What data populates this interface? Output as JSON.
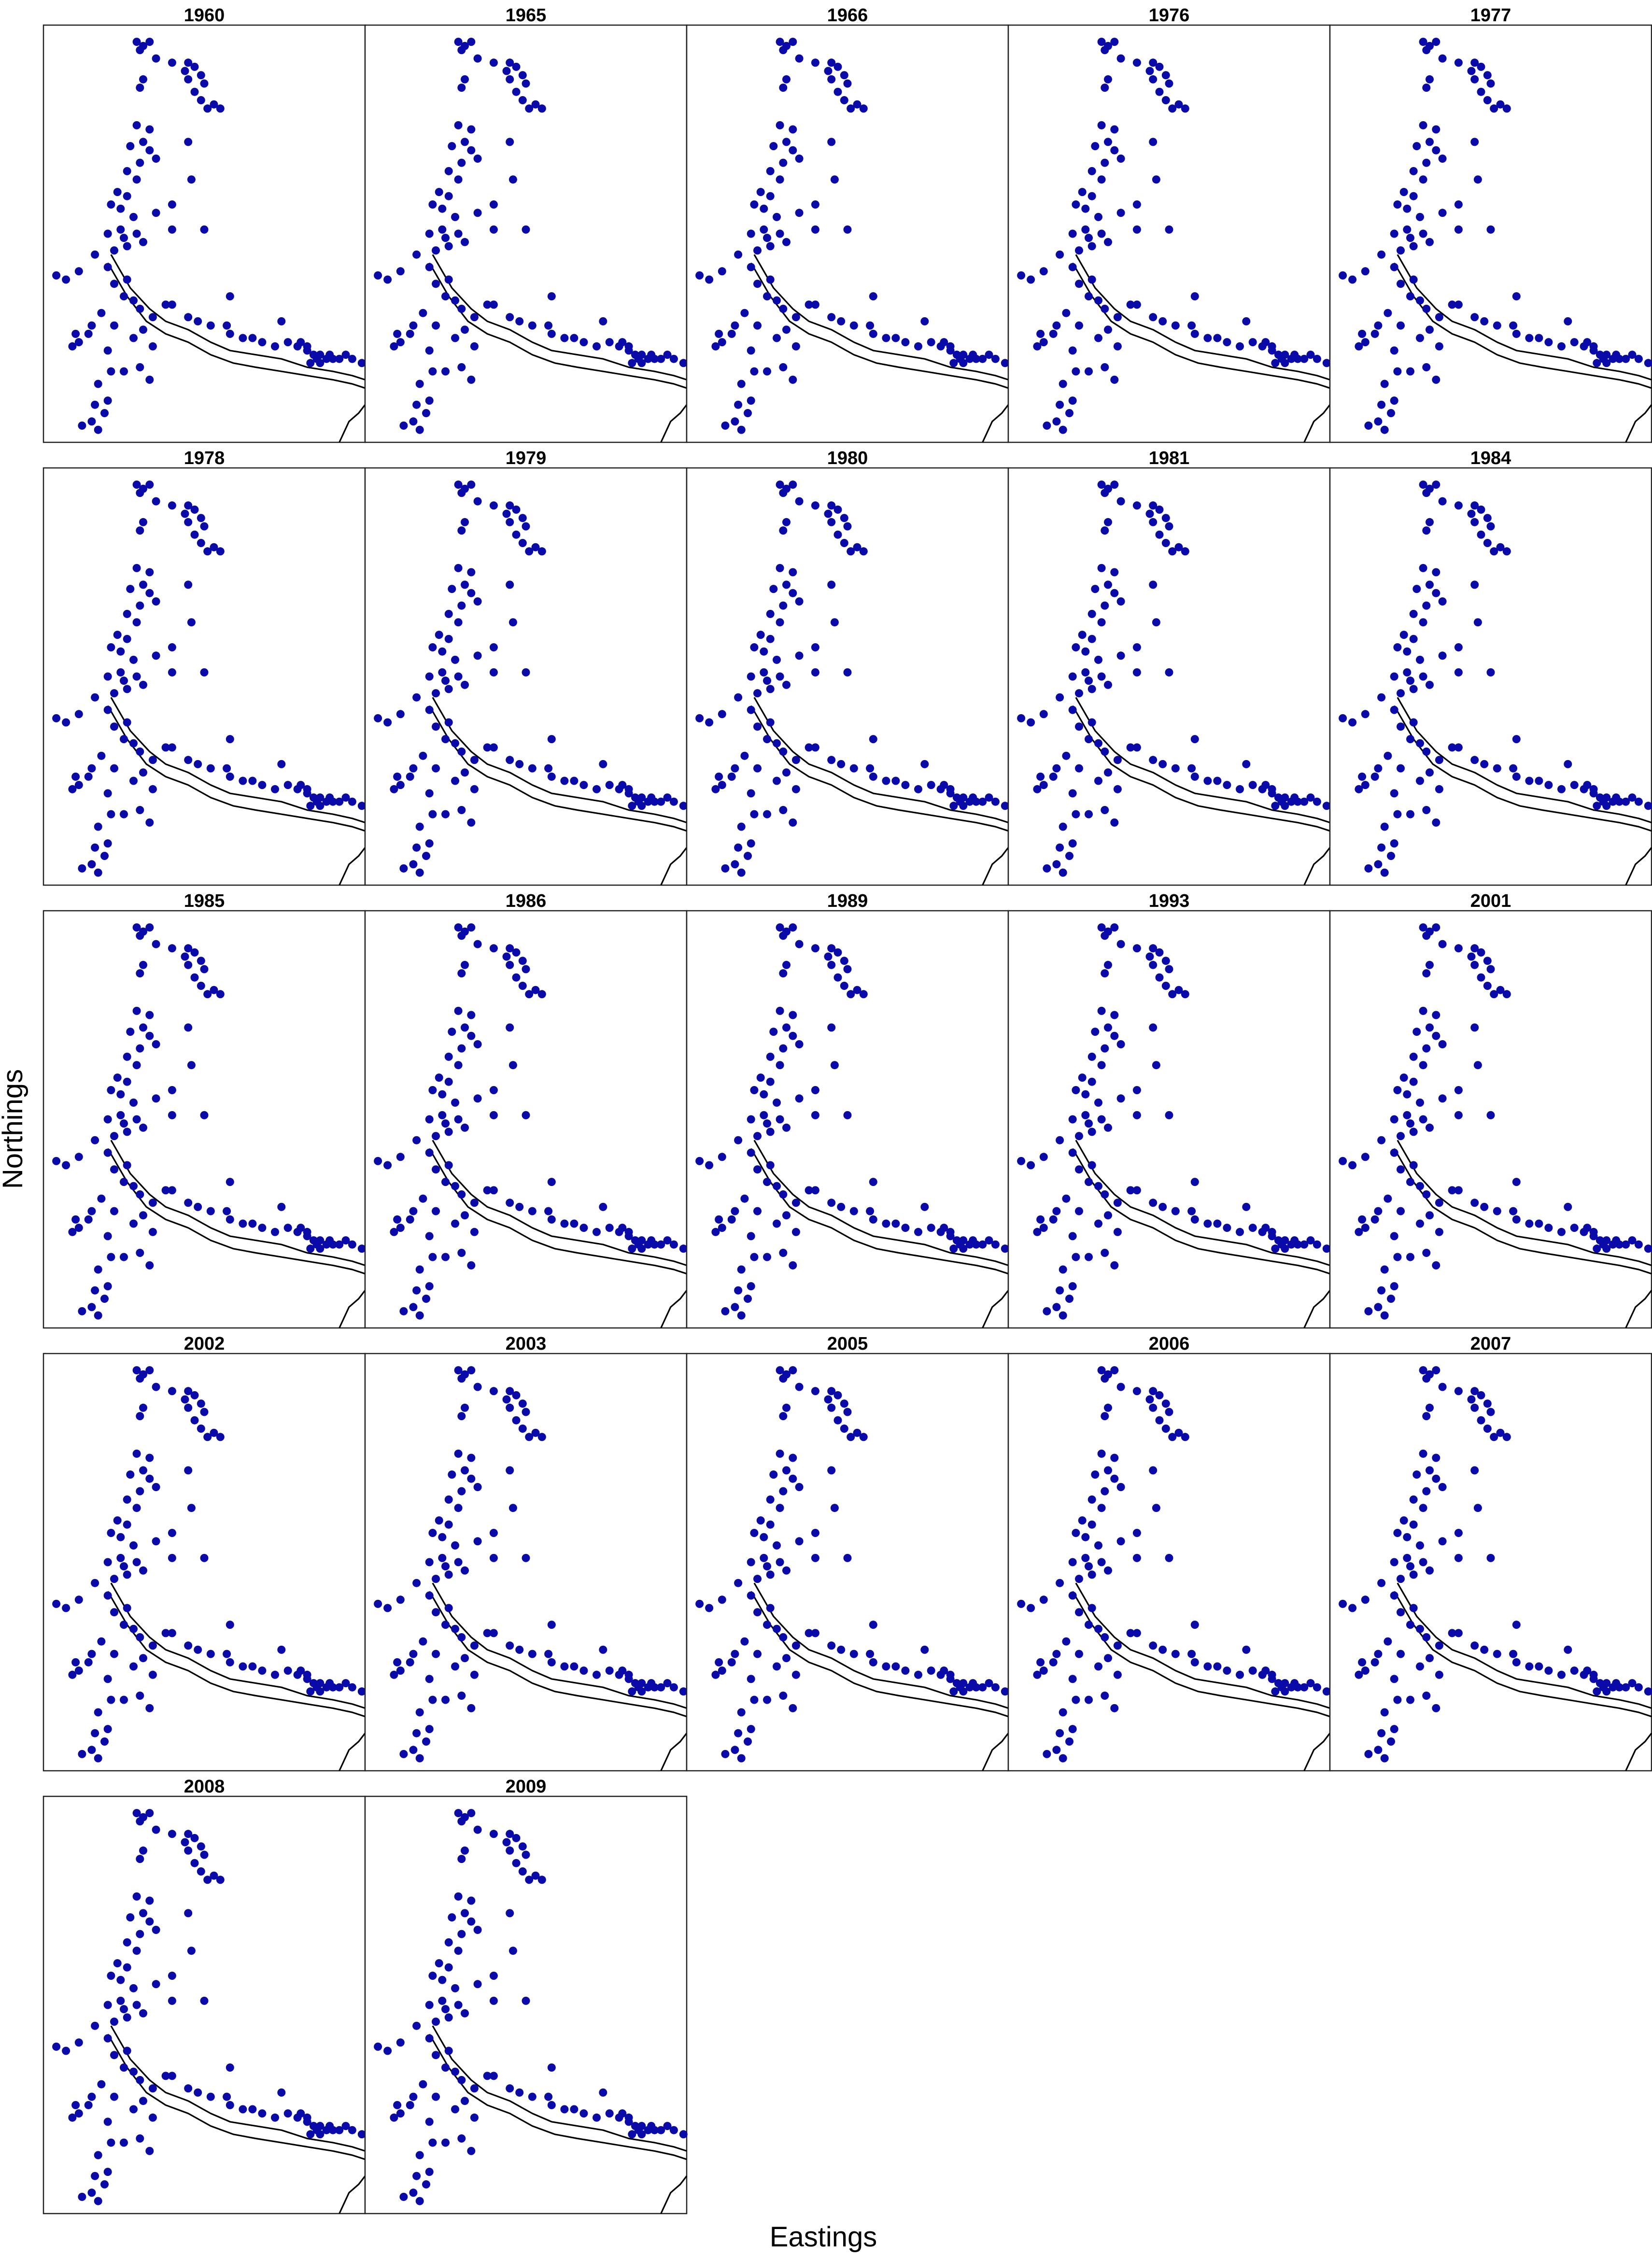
{
  "chart_data": {
    "type": "scatter",
    "layout": "small-multiples",
    "xlabel": "Eastings",
    "ylabel": "Northings",
    "panels": [
      "1960",
      "1965",
      "1966",
      "1976",
      "1977",
      "1978",
      "1979",
      "1980",
      "1981",
      "1984",
      "1985",
      "1986",
      "1989",
      "1993",
      "2001",
      "2002",
      "2003",
      "2005",
      "2006",
      "2007",
      "2008",
      "2009"
    ],
    "grid": false,
    "point_color": "#0a0aa8",
    "points": [
      [
        0.29,
        0.04
      ],
      [
        0.33,
        0.04
      ],
      [
        0.31,
        0.05
      ],
      [
        0.3,
        0.06
      ],
      [
        0.35,
        0.08
      ],
      [
        0.4,
        0.09
      ],
      [
        0.45,
        0.09
      ],
      [
        0.44,
        0.11
      ],
      [
        0.47,
        0.1
      ],
      [
        0.49,
        0.12
      ],
      [
        0.45,
        0.13
      ],
      [
        0.5,
        0.14
      ],
      [
        0.47,
        0.16
      ],
      [
        0.49,
        0.18
      ],
      [
        0.53,
        0.19
      ],
      [
        0.55,
        0.2
      ],
      [
        0.51,
        0.2
      ],
      [
        0.31,
        0.13
      ],
      [
        0.3,
        0.15
      ],
      [
        0.29,
        0.24
      ],
      [
        0.33,
        0.25
      ],
      [
        0.31,
        0.28
      ],
      [
        0.27,
        0.29
      ],
      [
        0.33,
        0.3
      ],
      [
        0.35,
        0.32
      ],
      [
        0.3,
        0.33
      ],
      [
        0.26,
        0.35
      ],
      [
        0.29,
        0.37
      ],
      [
        0.23,
        0.4
      ],
      [
        0.26,
        0.41
      ],
      [
        0.21,
        0.43
      ],
      [
        0.24,
        0.44
      ],
      [
        0.28,
        0.46
      ],
      [
        0.24,
        0.49
      ],
      [
        0.2,
        0.5
      ],
      [
        0.25,
        0.51
      ],
      [
        0.22,
        0.54
      ],
      [
        0.26,
        0.53
      ],
      [
        0.45,
        0.28
      ],
      [
        0.46,
        0.37
      ],
      [
        0.4,
        0.43
      ],
      [
        0.35,
        0.45
      ],
      [
        0.4,
        0.49
      ],
      [
        0.5,
        0.49
      ],
      [
        0.31,
        0.52
      ],
      [
        0.29,
        0.5
      ],
      [
        0.04,
        0.6
      ],
      [
        0.07,
        0.61
      ],
      [
        0.11,
        0.59
      ],
      [
        0.16,
        0.55
      ],
      [
        0.2,
        0.58
      ],
      [
        0.22,
        0.62
      ],
      [
        0.26,
        0.61
      ],
      [
        0.25,
        0.65
      ],
      [
        0.28,
        0.66
      ],
      [
        0.3,
        0.68
      ],
      [
        0.34,
        0.7
      ],
      [
        0.38,
        0.67
      ],
      [
        0.4,
        0.67
      ],
      [
        0.45,
        0.7
      ],
      [
        0.48,
        0.71
      ],
      [
        0.52,
        0.72
      ],
      [
        0.57,
        0.72
      ],
      [
        0.58,
        0.74
      ],
      [
        0.62,
        0.75
      ],
      [
        0.65,
        0.75
      ],
      [
        0.68,
        0.76
      ],
      [
        0.72,
        0.77
      ],
      [
        0.76,
        0.76
      ],
      [
        0.79,
        0.77
      ],
      [
        0.82,
        0.78
      ],
      [
        0.84,
        0.79
      ],
      [
        0.86,
        0.79
      ],
      [
        0.89,
        0.79
      ],
      [
        0.92,
        0.8
      ],
      [
        0.94,
        0.79
      ],
      [
        0.96,
        0.8
      ],
      [
        0.99,
        0.81
      ],
      [
        0.58,
        0.65
      ],
      [
        0.74,
        0.71
      ],
      [
        0.82,
        0.77
      ],
      [
        0.86,
        0.81
      ],
      [
        0.8,
        0.76
      ],
      [
        0.85,
        0.8
      ],
      [
        0.83,
        0.81
      ],
      [
        0.88,
        0.8
      ],
      [
        0.9,
        0.8
      ],
      [
        0.1,
        0.74
      ],
      [
        0.14,
        0.74
      ],
      [
        0.09,
        0.77
      ],
      [
        0.11,
        0.76
      ],
      [
        0.15,
        0.72
      ],
      [
        0.18,
        0.69
      ],
      [
        0.22,
        0.72
      ],
      [
        0.28,
        0.75
      ],
      [
        0.31,
        0.73
      ],
      [
        0.2,
        0.78
      ],
      [
        0.34,
        0.77
      ],
      [
        0.3,
        0.82
      ],
      [
        0.21,
        0.83
      ],
      [
        0.25,
        0.83
      ],
      [
        0.33,
        0.85
      ],
      [
        0.17,
        0.86
      ],
      [
        0.2,
        0.9
      ],
      [
        0.16,
        0.91
      ],
      [
        0.19,
        0.93
      ],
      [
        0.15,
        0.95
      ],
      [
        0.12,
        0.96
      ],
      [
        0.17,
        0.97
      ]
    ]
  }
}
